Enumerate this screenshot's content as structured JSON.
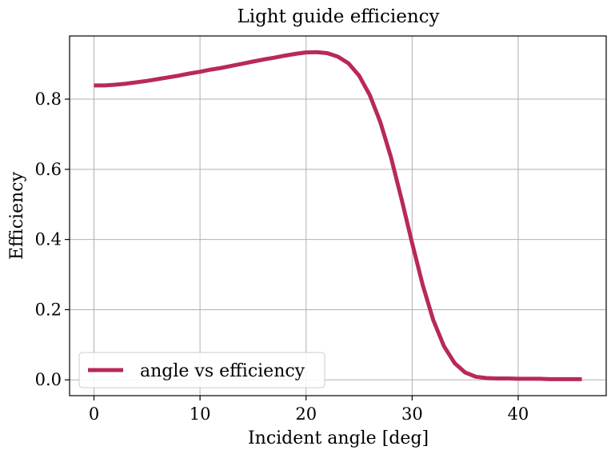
{
  "chart_data": {
    "type": "line",
    "title": "Light guide efficiency",
    "xlabel": "Incident angle [deg]",
    "ylabel": "Efficiency",
    "xlim": [
      -2.3,
      48.3
    ],
    "ylim": [
      -0.045,
      0.98
    ],
    "xticks": [
      0,
      10,
      20,
      30,
      40
    ],
    "yticks": [
      0.0,
      0.2,
      0.4,
      0.6,
      0.8
    ],
    "xtick_labels": [
      "0",
      "10",
      "20",
      "30",
      "40"
    ],
    "ytick_labels": [
      "0.0",
      "0.2",
      "0.4",
      "0.6",
      "0.8"
    ],
    "grid": true,
    "legend_position": "lower-left",
    "line_color": "#b8295a",
    "series": [
      {
        "name": "angle vs efficiency",
        "x": [
          0,
          1,
          2,
          3,
          4,
          5,
          6,
          7,
          8,
          9,
          10,
          11,
          12,
          13,
          14,
          15,
          16,
          17,
          18,
          19,
          20,
          21,
          22,
          23,
          24,
          25,
          26,
          27,
          28,
          29,
          30,
          31,
          32,
          33,
          34,
          35,
          36,
          37,
          38,
          39,
          40,
          41,
          42,
          43,
          44,
          45,
          46
        ],
        "values": [
          0.839,
          0.839,
          0.841,
          0.844,
          0.848,
          0.852,
          0.857,
          0.862,
          0.867,
          0.873,
          0.878,
          0.884,
          0.889,
          0.895,
          0.901,
          0.907,
          0.913,
          0.918,
          0.924,
          0.929,
          0.933,
          0.934,
          0.931,
          0.921,
          0.902,
          0.867,
          0.812,
          0.735,
          0.635,
          0.515,
          0.39,
          0.27,
          0.17,
          0.096,
          0.048,
          0.021,
          0.009,
          0.005,
          0.004,
          0.004,
          0.003,
          0.003,
          0.003,
          0.002,
          0.002,
          0.002,
          0.002
        ]
      }
    ]
  }
}
